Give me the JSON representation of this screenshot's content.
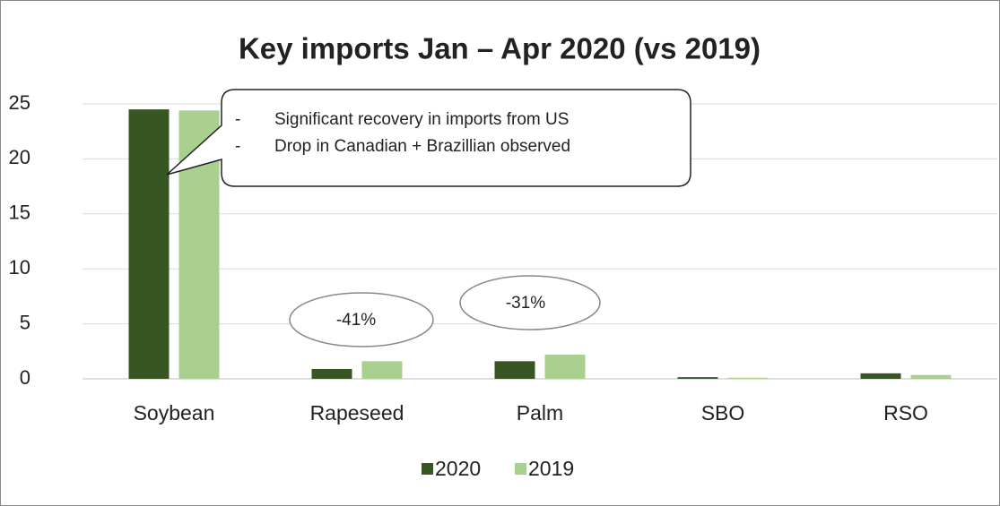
{
  "chart_data": {
    "type": "bar",
    "title": "Key imports Jan – Apr 2020 (vs 2019)",
    "categories": [
      "Soybean",
      "Rapeseed",
      "Palm",
      "SBO",
      "RSO"
    ],
    "series": [
      {
        "name": "2020",
        "color": "#375623",
        "values": [
          24.5,
          0.9,
          1.6,
          0.15,
          0.5
        ]
      },
      {
        "name": "2019",
        "color": "#a9d08e",
        "values": [
          24.4,
          1.6,
          2.2,
          0.1,
          0.35
        ]
      }
    ],
    "ylim": [
      0,
      25
    ],
    "yticks": [
      0,
      5,
      10,
      15,
      20,
      25
    ],
    "grid": true,
    "legend": "bottom",
    "annotations": [
      {
        "bullet": "-",
        "text": "Significant recovery in imports from US"
      },
      {
        "bullet": "-",
        "text": "Drop in Canadian + Brazillian observed"
      },
      {
        "text": "-41%"
      },
      {
        "text": "-31%"
      }
    ]
  }
}
